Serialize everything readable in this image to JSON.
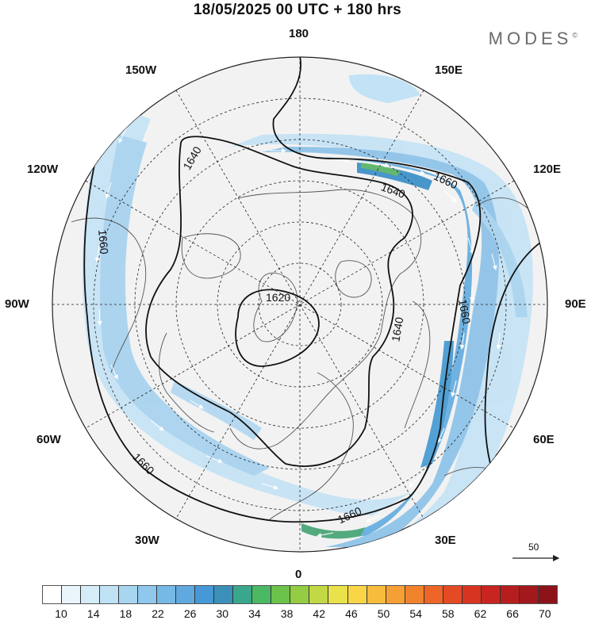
{
  "header": {
    "title": "18/05/2025  00 UTC  + 180 hrs",
    "brand": "MODES",
    "brand_mark": "©"
  },
  "map": {
    "longitude_labels": {
      "top": "180",
      "bottom": "0",
      "left": "90W",
      "right": "90E",
      "upper_left": "150W",
      "upper_right": "150E",
      "mid_upper_left": "120W",
      "mid_upper_right": "120E",
      "mid_lower_left": "60W",
      "mid_lower_right": "60E",
      "lower_left": "30W",
      "lower_right": "30E"
    },
    "contour_labels": [
      "1620",
      "1640",
      "1640",
      "1640",
      "1660",
      "1660",
      "1660",
      "1660",
      "1660"
    ],
    "vector_reference": "50"
  },
  "colorbar": {
    "ticks": [
      "10",
      "14",
      "18",
      "22",
      "26",
      "30",
      "34",
      "38",
      "42",
      "46",
      "50",
      "54",
      "58",
      "62",
      "66",
      "70"
    ],
    "colors": [
      "#ffffff",
      "#eaf4fb",
      "#d6ecf8",
      "#c0e2f5",
      "#a8d6f1",
      "#8fc8ec",
      "#77b9e6",
      "#5fa9df",
      "#4698d6",
      "#3b8fb8",
      "#3aa78c",
      "#4bb864",
      "#6cc24a",
      "#94cc44",
      "#c2d844",
      "#e9e24a",
      "#f8d648",
      "#f7bc3e",
      "#f5a035",
      "#f2832d",
      "#ee6527",
      "#e44a24",
      "#d83422",
      "#c92520",
      "#b61d1e",
      "#a2181c",
      "#8c1419"
    ]
  }
}
